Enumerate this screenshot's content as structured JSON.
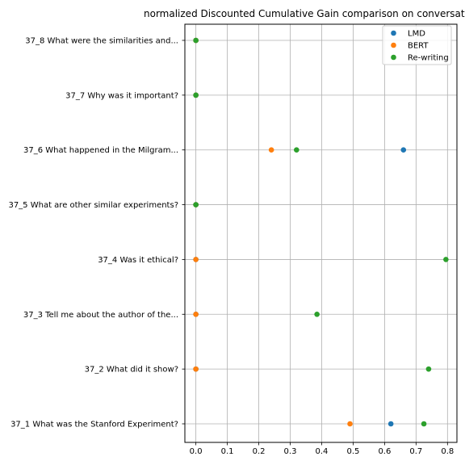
{
  "chart_data": {
    "type": "scatter",
    "orientation": "horizontal",
    "title": "normalized Discounted Cumulative Gain comparison on conversat",
    "xlabel": "",
    "ylabel": "",
    "xlim": [
      -0.035,
      0.83
    ],
    "xticks": [
      "0.0",
      "0.1",
      "0.2",
      "0.3",
      "0.4",
      "0.5",
      "0.6",
      "0.7",
      "0.8"
    ],
    "categories": [
      "37_1 What was the Stanford Experiment?",
      "37_2 What did it show?",
      "37_3 Tell me about the author of the...",
      "37_4 Was it ethical?",
      "37_5 What are other similar experiments?",
      "37_6 What happened in the Milgram...",
      "37_7 Why was it important?",
      "37_8 What were the similarities and..."
    ],
    "series": [
      {
        "name": "LMD",
        "color": "#1f77b4",
        "values": [
          0.62,
          0.0,
          0.0,
          0.0,
          0.0,
          0.66,
          0.0,
          0.0
        ]
      },
      {
        "name": "BERT",
        "color": "#ff7f0e",
        "values": [
          0.49,
          0.0,
          0.0,
          0.0,
          0.0,
          0.24,
          0.0,
          0.0
        ]
      },
      {
        "name": "Re-writing",
        "color": "#2ca02c",
        "values": [
          0.725,
          0.74,
          0.385,
          0.795,
          0.0,
          0.32,
          0.0,
          0.0
        ]
      }
    ],
    "grid": true,
    "legend": {
      "position": "top-right",
      "entries": [
        "LMD",
        "BERT",
        "Re-writing"
      ]
    }
  }
}
